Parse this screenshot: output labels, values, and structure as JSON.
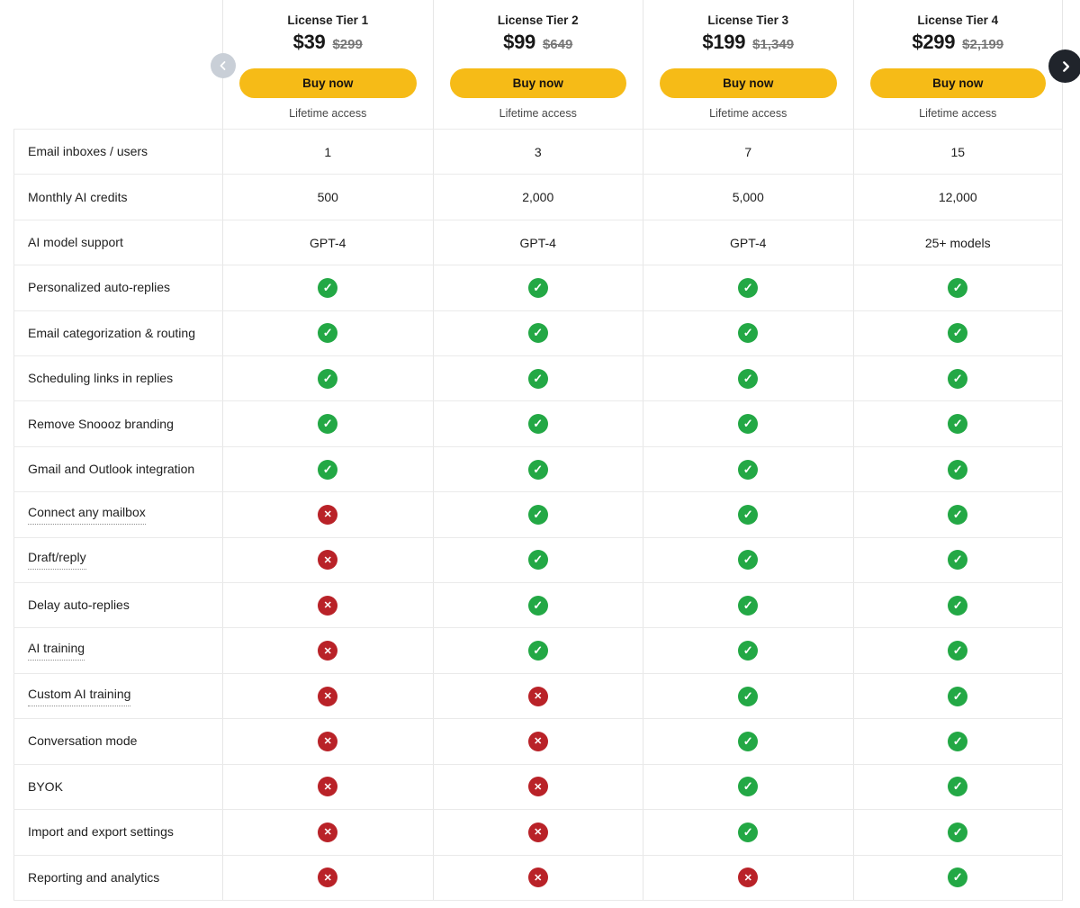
{
  "colors": {
    "accent_yellow": "#f6bb17",
    "check_green": "#23a845",
    "cross_red": "#b92228",
    "border_gray": "#e6e6e6"
  },
  "icons": {
    "check": "✓",
    "cross": "✕",
    "prev": "chevron-left",
    "next": "chevron-right"
  },
  "tiers": [
    {
      "name": "License Tier 1",
      "price": "$39",
      "original_price": "$299",
      "buy_label": "Buy now",
      "access_label": "Lifetime access"
    },
    {
      "name": "License Tier 2",
      "price": "$99",
      "original_price": "$649",
      "buy_label": "Buy now",
      "access_label": "Lifetime access"
    },
    {
      "name": "License Tier 3",
      "price": "$199",
      "original_price": "$1,349",
      "buy_label": "Buy now",
      "access_label": "Lifetime access"
    },
    {
      "name": "License Tier 4",
      "price": "$299",
      "original_price": "$2,199",
      "buy_label": "Buy now",
      "access_label": "Lifetime access"
    }
  ],
  "features": [
    {
      "label": "Email inboxes / users",
      "underline": false,
      "values": [
        "1",
        "3",
        "7",
        "15"
      ]
    },
    {
      "label": "Monthly AI credits",
      "underline": false,
      "values": [
        "500",
        "2,000",
        "5,000",
        "12,000"
      ]
    },
    {
      "label": "AI model support",
      "underline": false,
      "values": [
        "GPT-4",
        "GPT-4",
        "GPT-4",
        "25+ models"
      ]
    },
    {
      "label": "Personalized auto-replies",
      "underline": false,
      "values": [
        "check",
        "check",
        "check",
        "check"
      ]
    },
    {
      "label": "Email categorization & routing",
      "underline": false,
      "values": [
        "check",
        "check",
        "check",
        "check"
      ]
    },
    {
      "label": "Scheduling links in replies",
      "underline": false,
      "values": [
        "check",
        "check",
        "check",
        "check"
      ]
    },
    {
      "label": "Remove Snoooz branding",
      "underline": false,
      "values": [
        "check",
        "check",
        "check",
        "check"
      ]
    },
    {
      "label": "Gmail and Outlook integration",
      "underline": false,
      "values": [
        "check",
        "check",
        "check",
        "check"
      ]
    },
    {
      "label": "Connect any mailbox",
      "underline": true,
      "values": [
        "cross",
        "check",
        "check",
        "check"
      ]
    },
    {
      "label": "Draft/reply",
      "underline": true,
      "values": [
        "cross",
        "check",
        "check",
        "check"
      ]
    },
    {
      "label": "Delay auto-replies",
      "underline": false,
      "values": [
        "cross",
        "check",
        "check",
        "check"
      ]
    },
    {
      "label": "AI training",
      "underline": true,
      "values": [
        "cross",
        "check",
        "check",
        "check"
      ]
    },
    {
      "label": "Custom AI training",
      "underline": true,
      "values": [
        "cross",
        "cross",
        "check",
        "check"
      ]
    },
    {
      "label": "Conversation mode",
      "underline": false,
      "values": [
        "cross",
        "cross",
        "check",
        "check"
      ]
    },
    {
      "label": "BYOK",
      "underline": false,
      "values": [
        "cross",
        "cross",
        "check",
        "check"
      ]
    },
    {
      "label": "Import and export settings",
      "underline": false,
      "values": [
        "cross",
        "cross",
        "check",
        "check"
      ]
    },
    {
      "label": "Reporting and analytics",
      "underline": false,
      "values": [
        "cross",
        "cross",
        "cross",
        "check"
      ]
    }
  ]
}
